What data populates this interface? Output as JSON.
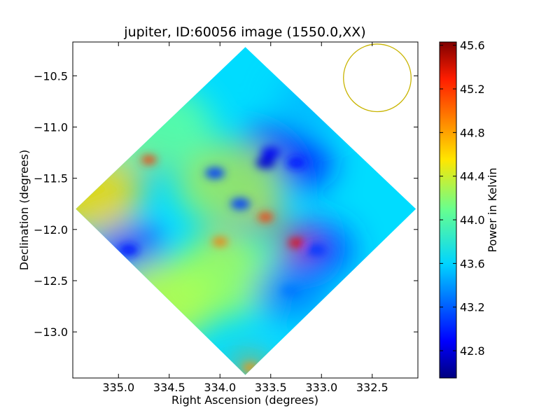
{
  "chart_data": {
    "type": "heatmap",
    "title": "jupiter, ID:60056 image (1550.0,XX)",
    "xlabel": "Right Ascension (degrees)",
    "ylabel": "Declination (degrees)",
    "xlim": [
      335.45,
      332.05
    ],
    "ylim": [
      -13.45,
      -10.17
    ],
    "x_ticks": [
      335.0,
      334.5,
      334.0,
      333.5,
      333.0,
      332.5
    ],
    "x_tick_labels": [
      "335.0",
      "334.5",
      "334.0",
      "333.5",
      "333.0",
      "332.5"
    ],
    "y_ticks": [
      -10.5,
      -11.0,
      -11.5,
      -12.0,
      -12.5,
      -13.0
    ],
    "y_tick_labels": [
      "−10.5",
      "−11.0",
      "−11.5",
      "−12.0",
      "−12.5",
      "−13.0"
    ],
    "grid": false,
    "colormap": "jet",
    "colorbar": {
      "label": "Power in Kelvin",
      "range": [
        42.55,
        45.63
      ],
      "ticks": [
        42.8,
        43.2,
        43.6,
        44.0,
        44.4,
        44.8,
        45.2,
        45.6
      ],
      "tick_labels": [
        "42.8",
        "43.2",
        "43.6",
        "44.0",
        "44.4",
        "44.8",
        "45.2",
        "45.6"
      ]
    },
    "map_footprint": {
      "shape": "diamond",
      "center": [
        333.75,
        -11.8
      ],
      "top": [
        333.75,
        -10.22
      ],
      "bottom": [
        333.75,
        -13.42
      ],
      "left": [
        335.42,
        -11.8
      ],
      "right": [
        332.07,
        -11.8
      ]
    },
    "beam": {
      "center": [
        332.45,
        -10.52
      ],
      "radius_deg": 0.33,
      "color": "#c8b400"
    },
    "features": [
      {
        "ra": 333.55,
        "dec": -11.35,
        "value": 42.8,
        "kind": "cold"
      },
      {
        "ra": 333.5,
        "dec": -11.25,
        "value": 42.9,
        "kind": "cold"
      },
      {
        "ra": 333.25,
        "dec": -11.35,
        "value": 43.0,
        "kind": "cold"
      },
      {
        "ra": 334.9,
        "dec": -12.2,
        "value": 43.0,
        "kind": "cold"
      },
      {
        "ra": 333.8,
        "dec": -11.75,
        "value": 43.1,
        "kind": "cold"
      },
      {
        "ra": 334.05,
        "dec": -11.45,
        "value": 43.1,
        "kind": "cold"
      },
      {
        "ra": 333.05,
        "dec": -12.2,
        "value": 43.1,
        "kind": "cold"
      },
      {
        "ra": 334.7,
        "dec": -11.32,
        "value": 45.1,
        "kind": "hot"
      },
      {
        "ra": 333.25,
        "dec": -12.13,
        "value": 45.3,
        "kind": "hot"
      },
      {
        "ra": 333.55,
        "dec": -11.88,
        "value": 45.1,
        "kind": "hot"
      },
      {
        "ra": 334.0,
        "dec": -12.12,
        "value": 44.9,
        "kind": "hot"
      },
      {
        "ra": 333.7,
        "dec": -13.35,
        "value": 44.8,
        "kind": "hot"
      },
      {
        "ra": 335.3,
        "dec": -11.65,
        "value": 44.6,
        "kind": "warm"
      },
      {
        "ra": 334.55,
        "dec": -12.7,
        "value": 44.3,
        "kind": "warm"
      },
      {
        "ra": 333.95,
        "dec": -12.45,
        "value": 44.2,
        "kind": "warm"
      },
      {
        "ra": 333.9,
        "dec": -11.55,
        "value": 44.2,
        "kind": "warm"
      },
      {
        "ra": 334.6,
        "dec": -11.0,
        "value": 44.0,
        "kind": "warm"
      },
      {
        "ra": 333.3,
        "dec": -12.6,
        "value": 43.3,
        "kind": "cold"
      },
      {
        "ra": 333.1,
        "dec": -10.75,
        "value": 43.5,
        "kind": "cold"
      }
    ],
    "background_value": 43.6
  }
}
